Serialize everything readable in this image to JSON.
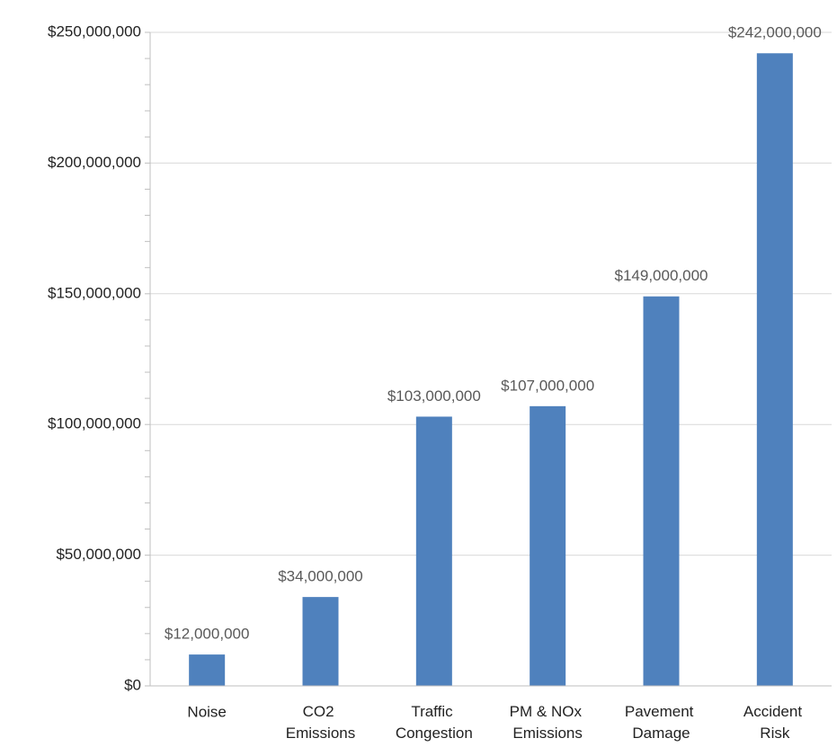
{
  "chart_data": {
    "type": "bar",
    "categories": [
      "Noise",
      "CO2 Emissions",
      "Traffic Congestion",
      "PM & NOx Emissions",
      "Pavement Damage",
      "Accident Risk"
    ],
    "values": [
      12000000,
      34000000,
      103000000,
      107000000,
      149000000,
      242000000
    ],
    "value_labels": [
      "$12,000,000",
      "$34,000,000",
      "$103,000,000",
      "$107,000,000",
      "$149,000,000",
      "$242,000,000"
    ],
    "color": "#4f81bd",
    "ylim": [
      0,
      250000000
    ],
    "yticks": [
      {
        "value": 0,
        "label": "$0"
      },
      {
        "value": 50000000,
        "label": "$50,000,000"
      },
      {
        "value": 100000000,
        "label": "$100,000,000"
      },
      {
        "value": 150000000,
        "label": "$150,000,000"
      },
      {
        "value": 200000000,
        "label": "$200,000,000"
      },
      {
        "value": 250000000,
        "label": "$250,000,000"
      }
    ],
    "grid": true
  }
}
